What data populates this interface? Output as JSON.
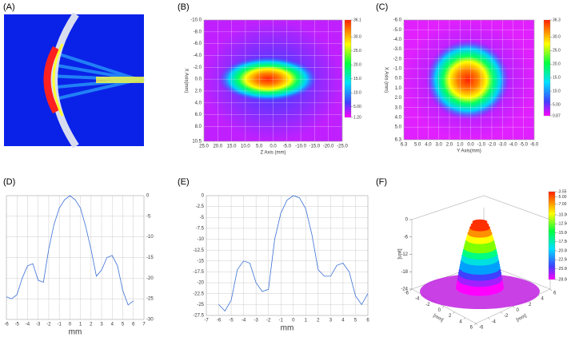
{
  "panel_labels": [
    "(A)",
    "(B)",
    "(C)",
    "(D)",
    "(E)",
    "(F)"
  ],
  "chart_data": [
    {
      "type": "heatmap",
      "xlabel": "Z Axis (mm)",
      "ylabel": "X Axis(mm)",
      "xlim": [
        25,
        -25
      ],
      "xticks": [
        {
          "value": 25,
          "label": "25.0"
        },
        {
          "value": 20,
          "label": "20.0"
        },
        {
          "value": 15,
          "label": "15.0"
        },
        {
          "value": 10,
          "label": "10.0"
        },
        {
          "value": 5,
          "label": "5.0"
        },
        {
          "value": 0,
          "label": "0.0"
        },
        {
          "value": -5,
          "label": "-5.0"
        },
        {
          "value": -10,
          "label": "-10.0"
        },
        {
          "value": -15,
          "label": "-15.0"
        },
        {
          "value": -20,
          "label": "-20.0"
        },
        {
          "value": -25,
          "label": "-25.0"
        }
      ],
      "ylim": [
        -10,
        10.5
      ],
      "yticks": [
        {
          "value": -10,
          "label": "-10.0"
        },
        {
          "value": -8,
          "label": "-8.0"
        },
        {
          "value": -6,
          "label": "-6.0"
        },
        {
          "value": -4,
          "label": "-4.0"
        },
        {
          "value": -2,
          "label": "-2.0"
        },
        {
          "value": 0,
          "label": "0.0"
        },
        {
          "value": 2,
          "label": "2.0"
        },
        {
          "value": 4,
          "label": "4.0"
        },
        {
          "value": 6,
          "label": "6.0"
        },
        {
          "value": 8,
          "label": "8.0"
        },
        10.5
      ],
      "clim": [
        1.2,
        36.1
      ],
      "cticks": [
        36.1,
        {
          "value": 30,
          "label": "30.0"
        },
        {
          "value": 25,
          "label": "25.0"
        },
        {
          "value": 20,
          "label": "20.0"
        },
        {
          "value": 15,
          "label": "15.0"
        },
        {
          "value": 10,
          "label": "10.0"
        },
        {
          "value": 5,
          "label": "5.00"
        },
        {
          "value": 1.2,
          "label": "1.20"
        }
      ]
    },
    {
      "type": "heatmap",
      "xlabel": "Y Axis(mm)",
      "ylabel": "X Axis (mm)",
      "xlim": [
        6.3,
        -6
      ],
      "xticks": [
        6.3,
        {
          "value": 5,
          "label": "5.0"
        },
        {
          "value": 4,
          "label": "4.0"
        },
        {
          "value": 3,
          "label": "3.0"
        },
        {
          "value": 2,
          "label": "2.0"
        },
        {
          "value": 1,
          "label": "1.0"
        },
        {
          "value": 0,
          "label": "0.0"
        },
        {
          "value": -1,
          "label": "-1.0"
        },
        {
          "value": -2,
          "label": "-2.0"
        },
        {
          "value": -3,
          "label": "-3.0"
        },
        {
          "value": -4,
          "label": "-4.0"
        },
        {
          "value": -5,
          "label": "-5.0"
        },
        {
          "value": -6,
          "label": "-6.0"
        }
      ],
      "ylim": [
        -6,
        6.3
      ],
      "yticks": [
        {
          "value": -6,
          "label": "-6.0"
        },
        {
          "value": -5,
          "label": "-5.0"
        },
        {
          "value": -4,
          "label": "-4.0"
        },
        {
          "value": -3,
          "label": "-3.0"
        },
        {
          "value": -2,
          "label": "-2.0"
        },
        {
          "value": -1,
          "label": "-1.0"
        },
        {
          "value": 0,
          "label": "0.0"
        },
        {
          "value": 1,
          "label": "1.0"
        },
        {
          "value": 2,
          "label": "2.0"
        },
        {
          "value": 3,
          "label": "3.0"
        },
        {
          "value": 4,
          "label": "4.0"
        },
        {
          "value": 5,
          "label": "5.0"
        },
        6.3
      ],
      "clim": [
        0.87,
        36.3
      ],
      "cticks": [
        36.3,
        {
          "value": 30,
          "label": "30.0"
        },
        {
          "value": 25,
          "label": "25.0"
        },
        {
          "value": 20,
          "label": "20.0"
        },
        {
          "value": 15,
          "label": "15.0"
        },
        {
          "value": 10,
          "label": "10.0"
        },
        {
          "value": 5,
          "label": "5.00"
        },
        0.87
      ]
    },
    {
      "type": "line",
      "xlabel": "mm",
      "color": "#3b6fd6",
      "grid": true,
      "xlim": [
        -6,
        7
      ],
      "xticks": [
        -6,
        -5,
        -4,
        -3,
        -2,
        -1,
        0,
        1,
        2,
        3,
        4,
        5,
        6,
        7
      ],
      "ylim": [
        -30,
        0
      ],
      "yticks": [
        0,
        -5,
        -10,
        -15,
        -20,
        -25,
        -30
      ],
      "x": [
        -6,
        -5.5,
        -5,
        -4.5,
        -4,
        -3.5,
        -3,
        -2.5,
        -2,
        -1.5,
        -1,
        -0.5,
        0,
        0.5,
        1,
        1.5,
        2,
        2.5,
        3,
        3.5,
        4,
        4.5,
        5,
        5.5,
        6
      ],
      "values": [
        -24.5,
        -25,
        -24,
        -20,
        -17,
        -16.5,
        -20.5,
        -21,
        -13,
        -7,
        -3,
        -1,
        0,
        -1,
        -3,
        -7.5,
        -13,
        -19.5,
        -18,
        -15,
        -14.5,
        -17,
        -23,
        -26.5,
        -25.5
      ]
    },
    {
      "type": "line",
      "xlabel": "mm",
      "color": "#3b6fd6",
      "grid": true,
      "xlim": [
        -7,
        6
      ],
      "xticks": [
        -7,
        -6,
        -5,
        -4,
        -3,
        -2,
        -1,
        0,
        1,
        2,
        3,
        4,
        5,
        6
      ],
      "ylim": [
        -27.5,
        0
      ],
      "yticks": [
        0,
        -2.5,
        -5,
        -7.5,
        -10,
        -12.5,
        -15,
        -17.5,
        -20,
        -22.5,
        -25,
        -27.5
      ],
      "x": [
        -6,
        -5.5,
        -5,
        -4.5,
        -4,
        -3.5,
        -3,
        -2.5,
        -2,
        -1.5,
        -1,
        -0.5,
        0,
        0.5,
        1,
        1.5,
        2,
        2.5,
        3,
        3.5,
        4,
        4.5,
        5,
        5.5,
        6
      ],
      "values": [
        -25,
        -26.5,
        -24,
        -17,
        -15,
        -15.5,
        -20,
        -22,
        -21.5,
        -10,
        -4,
        -1,
        0,
        -0.5,
        -3,
        -9,
        -17,
        -18.5,
        -18.5,
        -16,
        -15.5,
        -17.5,
        -23,
        -25,
        -22.5
      ]
    },
    {
      "type": "surface3d",
      "axis_labels": [
        "[mm]",
        "[mm]",
        "[unit]"
      ],
      "zlim": [
        -24,
        0
      ],
      "zticks": [
        0,
        -6,
        -12,
        -18,
        -24
      ],
      "xticks": [
        -6,
        -4,
        -2,
        0,
        2,
        4,
        6
      ],
      "yticks": [
        -6,
        -4,
        -2,
        0,
        2,
        4,
        6
      ],
      "clim": [
        -28,
        -3.55
      ],
      "cticks": [
        -3.55,
        {
          "value": -5,
          "label": "-5.00"
        },
        {
          "value": -7,
          "label": "-7.00"
        },
        {
          "value": -10,
          "label": "-10.00"
        },
        {
          "value": -12.5,
          "label": "-12.50"
        },
        {
          "value": -15,
          "label": "-15.00"
        },
        {
          "value": -17.5,
          "label": "-17.50"
        },
        {
          "value": -20,
          "label": "-20.00"
        },
        {
          "value": -22.5,
          "label": "-22.50"
        },
        {
          "value": -25,
          "label": "-25.00"
        },
        {
          "value": -28,
          "label": "-28.00"
        }
      ]
    }
  ]
}
